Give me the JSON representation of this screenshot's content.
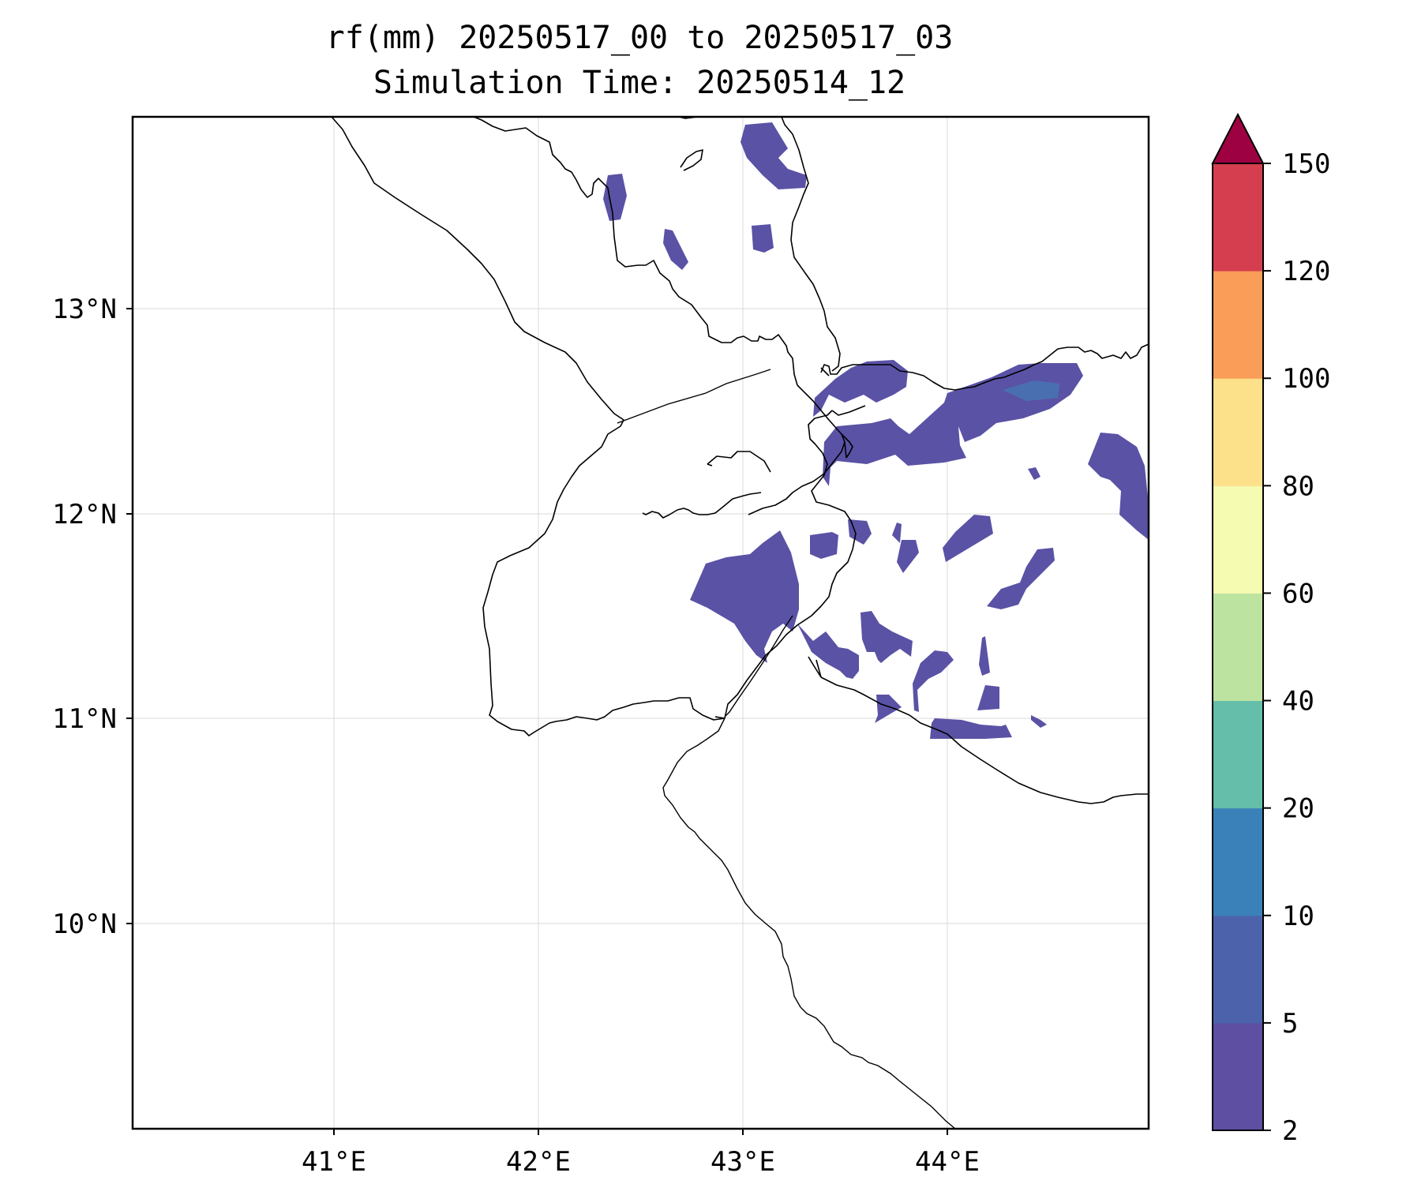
{
  "title": {
    "line1": "rf(mm) 20250517_00 to 20250517_03",
    "line2": "Simulation Time: 20250514_12"
  },
  "axes": {
    "x_ticks": [
      "41°E",
      "42°E",
      "43°E",
      "44°E"
    ],
    "y_ticks": [
      "13°N",
      "12°N",
      "11°N",
      "10°N"
    ],
    "lon_range": [
      40.0,
      45.0
    ],
    "lat_range": [
      9.05,
      13.9
    ],
    "grid": true
  },
  "colorbar": {
    "levels": [
      "2",
      "5",
      "10",
      "20",
      "40",
      "60",
      "80",
      "100",
      "120",
      "150"
    ],
    "colors": [
      "#5e4fa2",
      "#4c63ac",
      "#3a81b9",
      "#64bea9",
      "#bde3a1",
      "#f5fbb0",
      "#fce08a",
      "#f99d59",
      "#d53e4f",
      "#9e0142"
    ],
    "extend": "max"
  }
}
